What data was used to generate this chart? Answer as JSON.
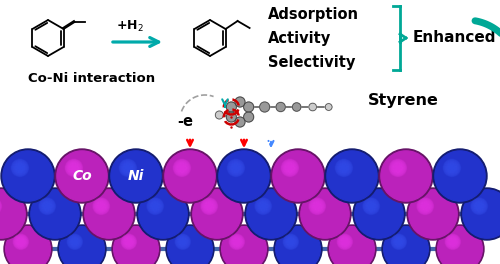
{
  "bg_color": "#ffffff",
  "text_co_ni_interaction": "Co-Ni interaction",
  "text_adsorption": "Adsorption",
  "text_activity": "Activity",
  "text_selectivity": "Selectivity",
  "text_enhanced": "Enhanced",
  "text_styrene": "Styrene",
  "text_minus_e": "-e",
  "text_co": "Co",
  "text_ni": "Ni",
  "co_color": "#bb22bb",
  "ni_color": "#2233cc",
  "teal_color": "#00a896",
  "red_color": "#cc0000",
  "gray_atom": "#999999",
  "white_atom": "#cccccc",
  "arrow_teal": "#00aaaa",
  "bond_color": "#4466aa"
}
